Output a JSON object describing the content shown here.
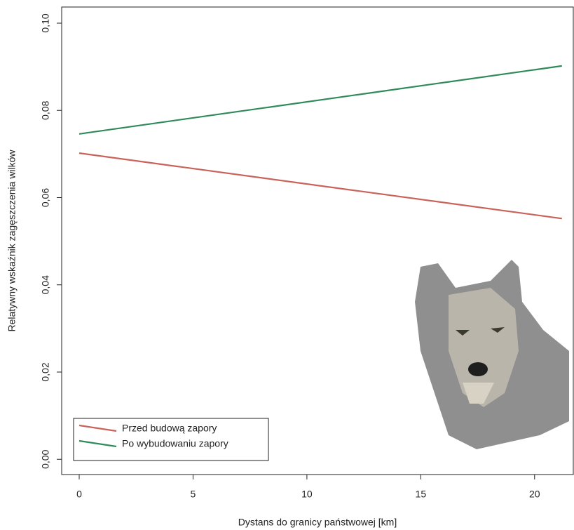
{
  "chart_data": {
    "type": "line",
    "xlabel": "Dystans do granicy państwowej [km]",
    "ylabel": "Relatywny wskaźnik zagęszczenia wilków",
    "x": [
      0,
      21.2
    ],
    "series": [
      {
        "name": "Przed budową zapory",
        "color": "#c8625a",
        "values": [
          0.0702,
          0.0552
        ]
      },
      {
        "name": "Po wybudowaniu zapory",
        "color": "#2f8a5a",
        "values": [
          0.0746,
          0.0902
        ]
      }
    ],
    "xlim": [
      -0.77,
      21.7
    ],
    "xticks": [
      0,
      5,
      10,
      15,
      20
    ],
    "ylim": [
      -0.0035,
      0.1037
    ],
    "yticks": [
      {
        "value": 0,
        "label": "0,00"
      },
      {
        "value": 0.02,
        "label": "0,02"
      },
      {
        "value": 0.04,
        "label": "0,04"
      },
      {
        "value": 0.06,
        "label": "0,06"
      },
      {
        "value": 0.08,
        "label": "0,08"
      },
      {
        "value": 0.1,
        "label": "0,10"
      }
    ],
    "legend": "bottom-left"
  }
}
